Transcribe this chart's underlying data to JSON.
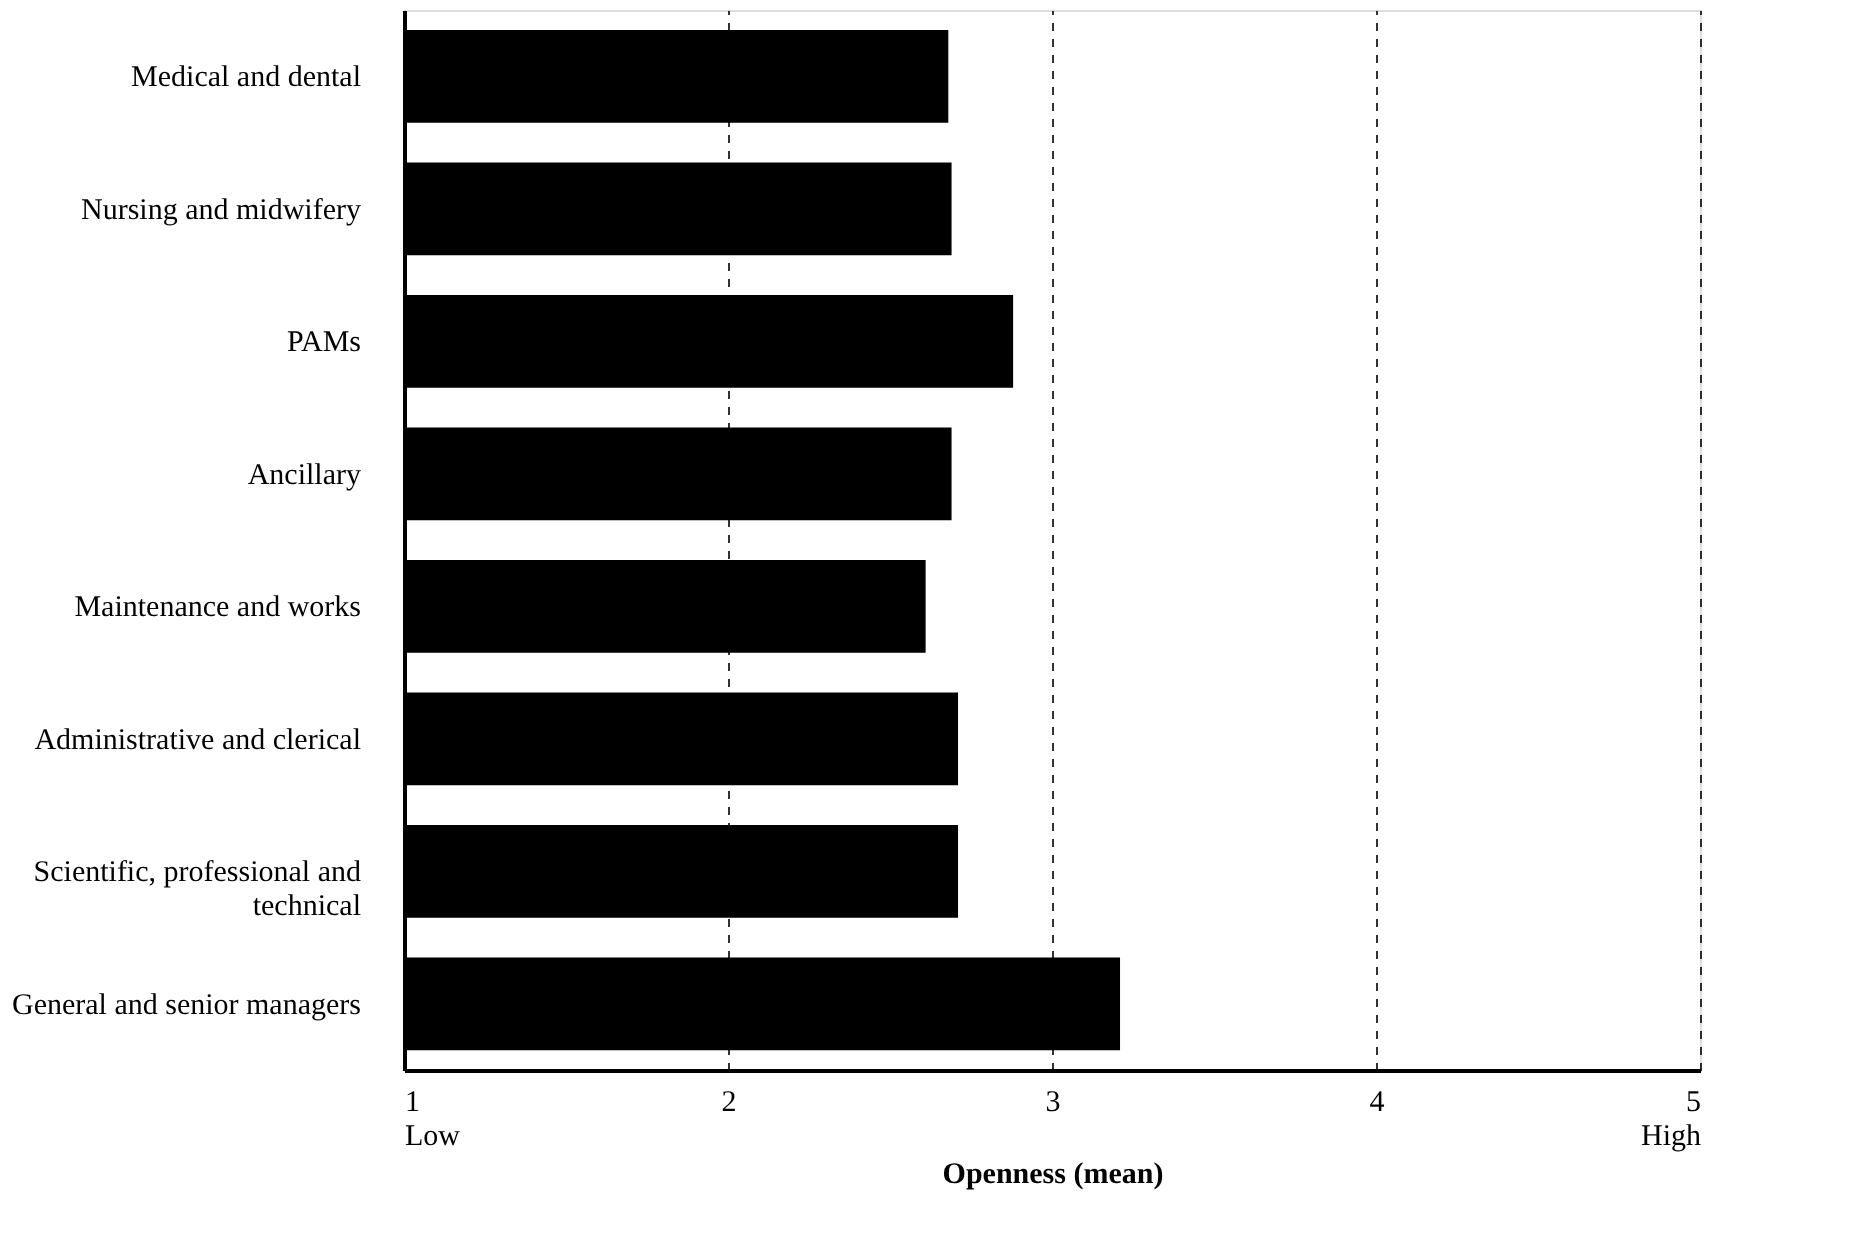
{
  "chart_data": {
    "type": "bar",
    "orientation": "horizontal",
    "xlabel": "Openness (mean)",
    "categories": [
      "Medical and dental",
      "Nursing and midwifery",
      "PAMs",
      "Ancillary",
      "Maintenance and works",
      "Administrative and clerical",
      "Scientific, professional and technical",
      "General and senior managers"
    ],
    "values": [
      2.68,
      2.69,
      2.88,
      2.69,
      2.61,
      2.71,
      2.71,
      3.21
    ],
    "color": "#000000",
    "xlim": [
      1,
      5
    ],
    "xticks": [
      {
        "value": 1,
        "label": "1\nLow"
      },
      2,
      3,
      4,
      {
        "value": 5,
        "label": "5\nHigh"
      }
    ],
    "grid": "x",
    "line_style": "dashed"
  }
}
